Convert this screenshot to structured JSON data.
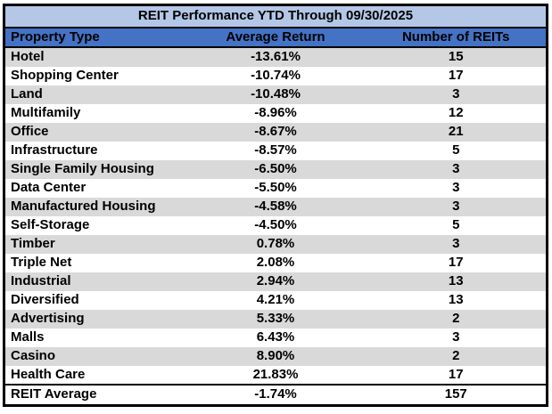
{
  "table": {
    "title": "REIT Performance YTD Through 09/30/2025",
    "columns": [
      "Property Type",
      "Average Return",
      "Number of REITs"
    ],
    "rows": [
      {
        "property_type": "Hotel",
        "average_return": "-13.61%",
        "number_of_reits": "15"
      },
      {
        "property_type": "Shopping Center",
        "average_return": "-10.74%",
        "number_of_reits": "17"
      },
      {
        "property_type": "Land",
        "average_return": "-10.48%",
        "number_of_reits": "3"
      },
      {
        "property_type": "Multifamily",
        "average_return": "-8.96%",
        "number_of_reits": "12"
      },
      {
        "property_type": "Office",
        "average_return": "-8.67%",
        "number_of_reits": "21"
      },
      {
        "property_type": "Infrastructure",
        "average_return": "-8.57%",
        "number_of_reits": "5"
      },
      {
        "property_type": "Single Family Housing",
        "average_return": "-6.50%",
        "number_of_reits": "3"
      },
      {
        "property_type": "Data Center",
        "average_return": "-5.50%",
        "number_of_reits": "3"
      },
      {
        "property_type": "Manufactured Housing",
        "average_return": "-4.58%",
        "number_of_reits": "3"
      },
      {
        "property_type": "Self-Storage",
        "average_return": "-4.50%",
        "number_of_reits": "5"
      },
      {
        "property_type": "Timber",
        "average_return": "0.78%",
        "number_of_reits": "3"
      },
      {
        "property_type": "Triple Net",
        "average_return": "2.08%",
        "number_of_reits": "17"
      },
      {
        "property_type": "Industrial",
        "average_return": "2.94%",
        "number_of_reits": "13"
      },
      {
        "property_type": "Diversified",
        "average_return": "4.21%",
        "number_of_reits": "13"
      },
      {
        "property_type": "Advertising",
        "average_return": "5.33%",
        "number_of_reits": "2"
      },
      {
        "property_type": "Malls",
        "average_return": "6.43%",
        "number_of_reits": "3"
      },
      {
        "property_type": "Casino",
        "average_return": "8.90%",
        "number_of_reits": "2"
      },
      {
        "property_type": "Health Care",
        "average_return": "21.83%",
        "number_of_reits": "17"
      }
    ],
    "footer": {
      "property_type": "REIT Average",
      "average_return": "-1.74%",
      "number_of_reits": "157"
    }
  },
  "colors": {
    "title_bg": "#B4C7E7",
    "header_bg": "#4472C4",
    "row_alt_bg": "#D9D9D9",
    "row_bg": "#FFFFFF",
    "border": "#000000",
    "text": "#000000"
  },
  "chart_data": {
    "type": "table",
    "title": "REIT Performance YTD Through 09/30/2025",
    "columns": [
      "Property Type",
      "Average Return",
      "Number of REITs"
    ],
    "rows": [
      [
        "Hotel",
        -13.61,
        15
      ],
      [
        "Shopping Center",
        -10.74,
        17
      ],
      [
        "Land",
        -10.48,
        3
      ],
      [
        "Multifamily",
        -8.96,
        12
      ],
      [
        "Office",
        -8.67,
        21
      ],
      [
        "Infrastructure",
        -8.57,
        5
      ],
      [
        "Single Family Housing",
        -6.5,
        3
      ],
      [
        "Data Center",
        -5.5,
        3
      ],
      [
        "Manufactured Housing",
        -4.58,
        3
      ],
      [
        "Self-Storage",
        -4.5,
        5
      ],
      [
        "Timber",
        0.78,
        3
      ],
      [
        "Triple Net",
        2.08,
        17
      ],
      [
        "Industrial",
        2.94,
        13
      ],
      [
        "Diversified",
        4.21,
        13
      ],
      [
        "Advertising",
        5.33,
        2
      ],
      [
        "Malls",
        6.43,
        3
      ],
      [
        "Casino",
        8.9,
        2
      ],
      [
        "Health Care",
        21.83,
        17
      ],
      [
        "REIT Average",
        -1.74,
        157
      ]
    ],
    "units": {
      "Average Return": "percent"
    }
  }
}
